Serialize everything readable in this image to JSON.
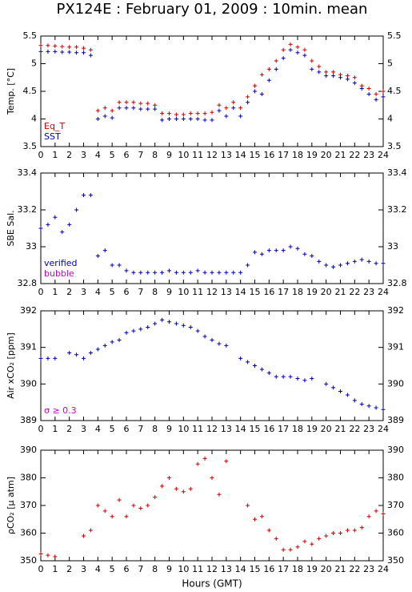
{
  "chart_data": [
    {
      "type": "scatter",
      "title": "PX124E : February 01, 2009 : 10min. mean",
      "ylabel": "Temp. [°C]",
      "x": [
        0,
        0.5,
        1,
        1.5,
        2,
        2.5,
        3,
        3.5,
        4,
        4.5,
        5,
        5.5,
        6,
        6.5,
        7,
        7.5,
        8,
        8.5,
        9,
        9.5,
        10,
        10.5,
        11,
        11.5,
        12,
        12.5,
        13,
        13.5,
        14,
        14.5,
        15,
        15.5,
        16,
        16.5,
        17,
        17.5,
        18,
        18.5,
        19,
        19.5,
        20,
        20.5,
        21,
        21.5,
        22,
        22.5,
        23,
        23.5,
        24
      ],
      "series": [
        {
          "name": "Eq_T",
          "color": "#cc0000",
          "values": [
            5.33,
            5.33,
            5.32,
            5.31,
            5.3,
            5.3,
            5.28,
            5.25,
            4.15,
            4.2,
            4.15,
            4.3,
            4.3,
            4.3,
            4.28,
            4.28,
            4.25,
            4.1,
            4.1,
            4.08,
            4.08,
            4.1,
            4.1,
            4.1,
            4.12,
            4.25,
            4.2,
            4.3,
            4.2,
            4.4,
            4.6,
            4.8,
            4.9,
            5.05,
            5.25,
            5.35,
            5.3,
            5.25,
            5.05,
            4.95,
            4.85,
            4.85,
            4.8,
            4.78,
            4.75,
            4.6,
            4.55,
            4.45,
            4.5
          ]
        },
        {
          "name": "SST",
          "color": "#0000bb",
          "values": [
            5.22,
            5.22,
            5.22,
            5.21,
            5.21,
            5.2,
            5.2,
            5.15,
            4.0,
            4.05,
            4.02,
            4.2,
            4.2,
            4.2,
            4.18,
            4.18,
            4.18,
            3.98,
            4.0,
            4.0,
            4.0,
            4.0,
            4.0,
            3.98,
            3.98,
            4.15,
            4.05,
            4.2,
            4.05,
            4.3,
            4.5,
            4.45,
            4.7,
            4.9,
            5.1,
            5.25,
            5.2,
            5.15,
            4.9,
            4.85,
            4.78,
            4.78,
            4.75,
            4.72,
            4.65,
            4.55,
            4.45,
            4.35,
            4.4
          ]
        }
      ],
      "xlim": [
        0,
        24
      ],
      "xticks": [
        0,
        1,
        2,
        3,
        4,
        5,
        6,
        7,
        8,
        9,
        10,
        11,
        12,
        13,
        14,
        15,
        16,
        17,
        18,
        19,
        20,
        21,
        22,
        23,
        24
      ],
      "ylim": [
        3.5,
        5.5
      ],
      "yticks": [
        3.5,
        4,
        4.5,
        5,
        5.5
      ]
    },
    {
      "type": "scatter",
      "ylabel": "SBE Sal.",
      "x": [
        0,
        0.5,
        1,
        1.5,
        2,
        2.5,
        3,
        3.5,
        4,
        4.5,
        5,
        5.5,
        6,
        6.5,
        7,
        7.5,
        8,
        8.5,
        9,
        9.5,
        10,
        10.5,
        11,
        11.5,
        12,
        12.5,
        13,
        13.5,
        14,
        14.5,
        15,
        15.5,
        16,
        16.5,
        17,
        17.5,
        18,
        18.5,
        19,
        19.5,
        20,
        20.5,
        21,
        21.5,
        22,
        22.5,
        23,
        23.5,
        24
      ],
      "series": [
        {
          "name": "verified",
          "color": "#0000bb",
          "values": [
            33.1,
            33.12,
            33.16,
            33.08,
            33.12,
            33.2,
            33.28,
            33.28,
            32.95,
            32.98,
            32.9,
            32.9,
            32.87,
            32.86,
            32.86,
            32.86,
            32.86,
            32.86,
            32.87,
            32.86,
            32.86,
            32.86,
            32.87,
            32.86,
            32.86,
            32.86,
            32.86,
            32.86,
            32.86,
            32.9,
            32.97,
            32.96,
            32.98,
            32.98,
            32.98,
            33.0,
            32.99,
            32.96,
            32.95,
            32.92,
            32.9,
            32.89,
            32.9,
            32.91,
            32.92,
            32.93,
            32.92,
            32.91,
            32.91
          ]
        }
      ],
      "annotations": [
        {
          "text": "bubble",
          "color": "#cc00cc"
        }
      ],
      "xlim": [
        0,
        24
      ],
      "xticks": [
        0,
        1,
        2,
        3,
        4,
        5,
        6,
        7,
        8,
        9,
        10,
        11,
        12,
        13,
        14,
        15,
        16,
        17,
        18,
        19,
        20,
        21,
        22,
        23,
        24
      ],
      "ylim": [
        32.8,
        33.4
      ],
      "yticks": [
        32.8,
        33,
        33.2,
        33.4
      ]
    },
    {
      "type": "scatter",
      "ylabel": "Air xCO₂ [ppm]",
      "x": [
        0,
        0.5,
        1,
        1.5,
        2,
        2.5,
        3,
        3.5,
        4,
        4.5,
        5,
        5.5,
        6,
        6.5,
        7,
        7.5,
        8,
        8.5,
        9,
        9.5,
        10,
        10.5,
        11,
        11.5,
        12,
        12.5,
        13,
        13.5,
        14,
        14.5,
        15,
        15.5,
        16,
        16.5,
        17,
        17.5,
        18,
        18.5,
        19,
        19.5,
        20,
        20.5,
        21,
        21.5,
        22,
        22.5,
        23,
        23.5,
        24
      ],
      "series": [
        {
          "color": "#0000bb",
          "values": [
            390.7,
            390.7,
            390.7,
            null,
            390.85,
            390.8,
            390.7,
            390.85,
            390.95,
            391.05,
            391.15,
            391.2,
            391.4,
            391.45,
            391.5,
            391.55,
            391.65,
            391.75,
            391.7,
            391.65,
            391.6,
            391.55,
            391.45,
            391.3,
            391.2,
            391.1,
            391.05,
            null,
            390.7,
            390.6,
            390.5,
            390.4,
            390.3,
            390.2,
            390.2,
            390.2,
            390.15,
            390.1,
            390.15,
            null,
            390.0,
            389.9,
            389.8,
            389.7,
            389.55,
            389.45,
            389.4,
            389.35,
            389.3
          ]
        }
      ],
      "annotations": [
        {
          "text": "σ ≥ 0.3",
          "color": "#cc00cc"
        }
      ],
      "xlim": [
        0,
        24
      ],
      "xticks": [
        0,
        1,
        2,
        3,
        4,
        5,
        6,
        7,
        8,
        9,
        10,
        11,
        12,
        13,
        14,
        15,
        16,
        17,
        18,
        19,
        20,
        21,
        22,
        23,
        24
      ],
      "ylim": [
        389,
        392
      ],
      "yticks": [
        389,
        390,
        391,
        392
      ]
    },
    {
      "type": "scatter",
      "ylabel": "ρCO₂ [μ atm]",
      "xlabel": "Hours (GMT)",
      "x": [
        0,
        0.5,
        1,
        1.5,
        2,
        2.5,
        3,
        3.5,
        4,
        4.5,
        5,
        5.5,
        6,
        6.5,
        7,
        7.5,
        8,
        8.5,
        9,
        9.5,
        10,
        10.5,
        11,
        11.5,
        12,
        12.5,
        13,
        13.5,
        14,
        14.5,
        15,
        15.5,
        16,
        16.5,
        17,
        17.5,
        18,
        18.5,
        19,
        19.5,
        20,
        20.5,
        21,
        21.5,
        22,
        22.5,
        23,
        23.5,
        24
      ],
      "series": [
        {
          "color": "#cc0000",
          "values": [
            352.5,
            352,
            351.5,
            null,
            null,
            null,
            359,
            361,
            370,
            368,
            366,
            372,
            366,
            370,
            369,
            370,
            373,
            377,
            380,
            376,
            375,
            376,
            385,
            387,
            380,
            374,
            386,
            null,
            null,
            370,
            365,
            366,
            361,
            358,
            354,
            354,
            355,
            357,
            356,
            358,
            359,
            360,
            360,
            361,
            361,
            362,
            366,
            368,
            367
          ]
        }
      ],
      "xlim": [
        0,
        24
      ],
      "xticks": [
        0,
        1,
        2,
        3,
        4,
        5,
        6,
        7,
        8,
        9,
        10,
        11,
        12,
        13,
        14,
        15,
        16,
        17,
        18,
        19,
        20,
        21,
        22,
        23,
        24
      ],
      "ylim": [
        350,
        390
      ],
      "yticks": [
        350,
        360,
        370,
        380,
        390
      ]
    }
  ]
}
